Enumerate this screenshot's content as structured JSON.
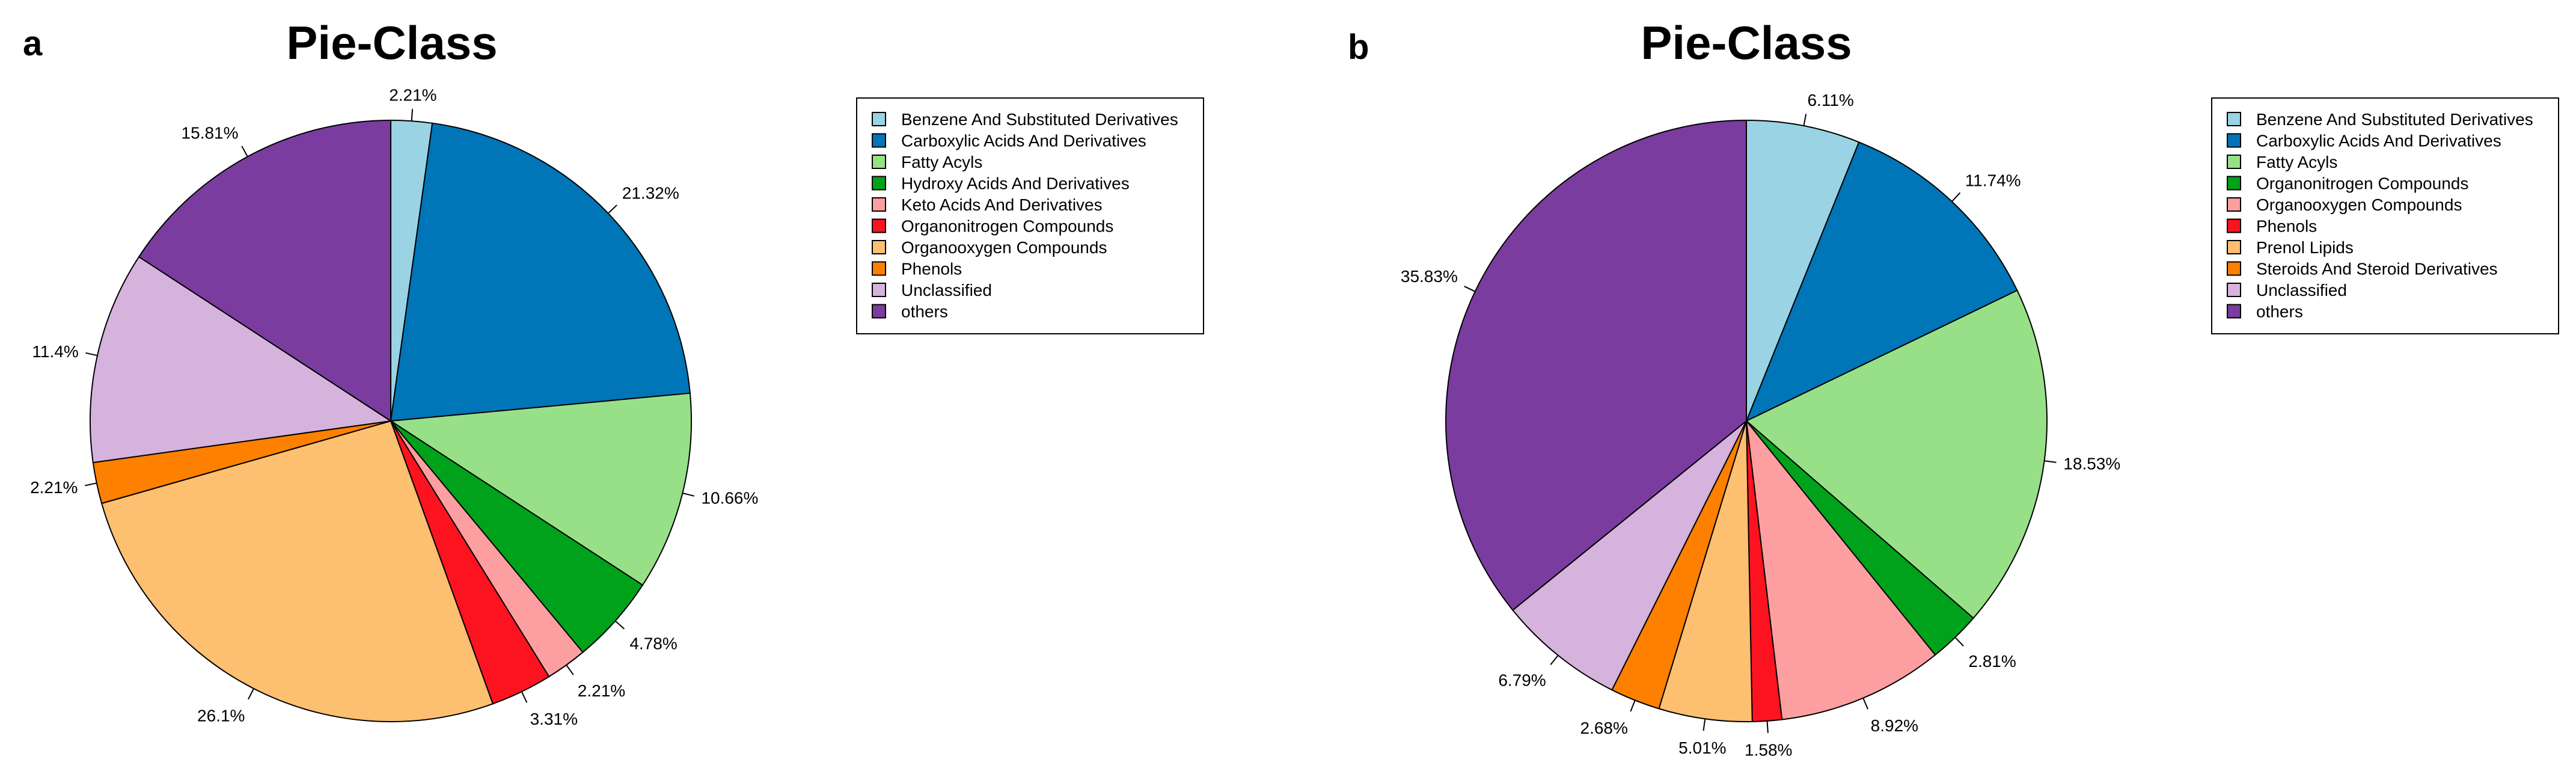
{
  "chart_data": [
    {
      "type": "pie",
      "panel": "a",
      "title": "Pie-Class",
      "start": "top",
      "direction": "clockwise",
      "legend_position": "right",
      "slices": [
        {
          "label": "Benzene And Substituted Derivatives",
          "value": 2.21,
          "value_label": "2.21%",
          "color": "#9ad3e4"
        },
        {
          "label": "Carboxylic Acids And Derivatives",
          "value": 21.32,
          "value_label": "21.32%",
          "color": "#0075b8"
        },
        {
          "label": "Fatty Acyls",
          "value": 10.66,
          "value_label": "10.66%",
          "color": "#98e087"
        },
        {
          "label": "Hydroxy Acids And Derivatives",
          "value": 4.78,
          "value_label": "4.78%",
          "color": "#00a21c"
        },
        {
          "label": "Keto Acids And Derivatives",
          "value": 2.21,
          "value_label": "2.21%",
          "color": "#fd9fa0"
        },
        {
          "label": "Organonitrogen Compounds",
          "value": 3.31,
          "value_label": "3.31%",
          "color": "#fd1320"
        },
        {
          "label": "Organooxygen Compounds",
          "value": 26.1,
          "value_label": "26.1%",
          "color": "#fdbf70"
        },
        {
          "label": "Phenols",
          "value": 2.21,
          "value_label": "2.21%",
          "color": "#fd8000"
        },
        {
          "label": "Unclassified",
          "value": 11.4,
          "value_label": "11.4%",
          "color": "#d5b3dd"
        },
        {
          "label": "others",
          "value": 15.81,
          "value_label": "15.81%",
          "color": "#7a3c9e"
        }
      ]
    },
    {
      "type": "pie",
      "panel": "b",
      "title": "Pie-Class",
      "start": "top",
      "direction": "clockwise",
      "legend_position": "right",
      "slices": [
        {
          "label": "Benzene And Substituted Derivatives",
          "value": 6.11,
          "value_label": "6.11%",
          "color": "#9ad3e4"
        },
        {
          "label": "Carboxylic Acids And Derivatives",
          "value": 11.74,
          "value_label": "11.74%",
          "color": "#0075b8"
        },
        {
          "label": "Fatty Acyls",
          "value": 18.53,
          "value_label": "18.53%",
          "color": "#98e087"
        },
        {
          "label": "Organonitrogen Compounds",
          "value": 2.81,
          "value_label": "2.81%",
          "color": "#00a21c"
        },
        {
          "label": "Organooxygen Compounds",
          "value": 8.92,
          "value_label": "8.92%",
          "color": "#fd9fa0"
        },
        {
          "label": "Phenols",
          "value": 1.58,
          "value_label": "1.58%",
          "color": "#fd1320"
        },
        {
          "label": "Prenol Lipids",
          "value": 5.01,
          "value_label": "5.01%",
          "color": "#fdbf70"
        },
        {
          "label": "Steroids And Steroid Derivatives",
          "value": 2.68,
          "value_label": "2.68%",
          "color": "#fd8000"
        },
        {
          "label": "Unclassified",
          "value": 6.79,
          "value_label": "6.79%",
          "color": "#d5b3dd"
        },
        {
          "label": "others",
          "value": 35.83,
          "value_label": "35.83%",
          "color": "#7a3c9e"
        }
      ]
    }
  ]
}
